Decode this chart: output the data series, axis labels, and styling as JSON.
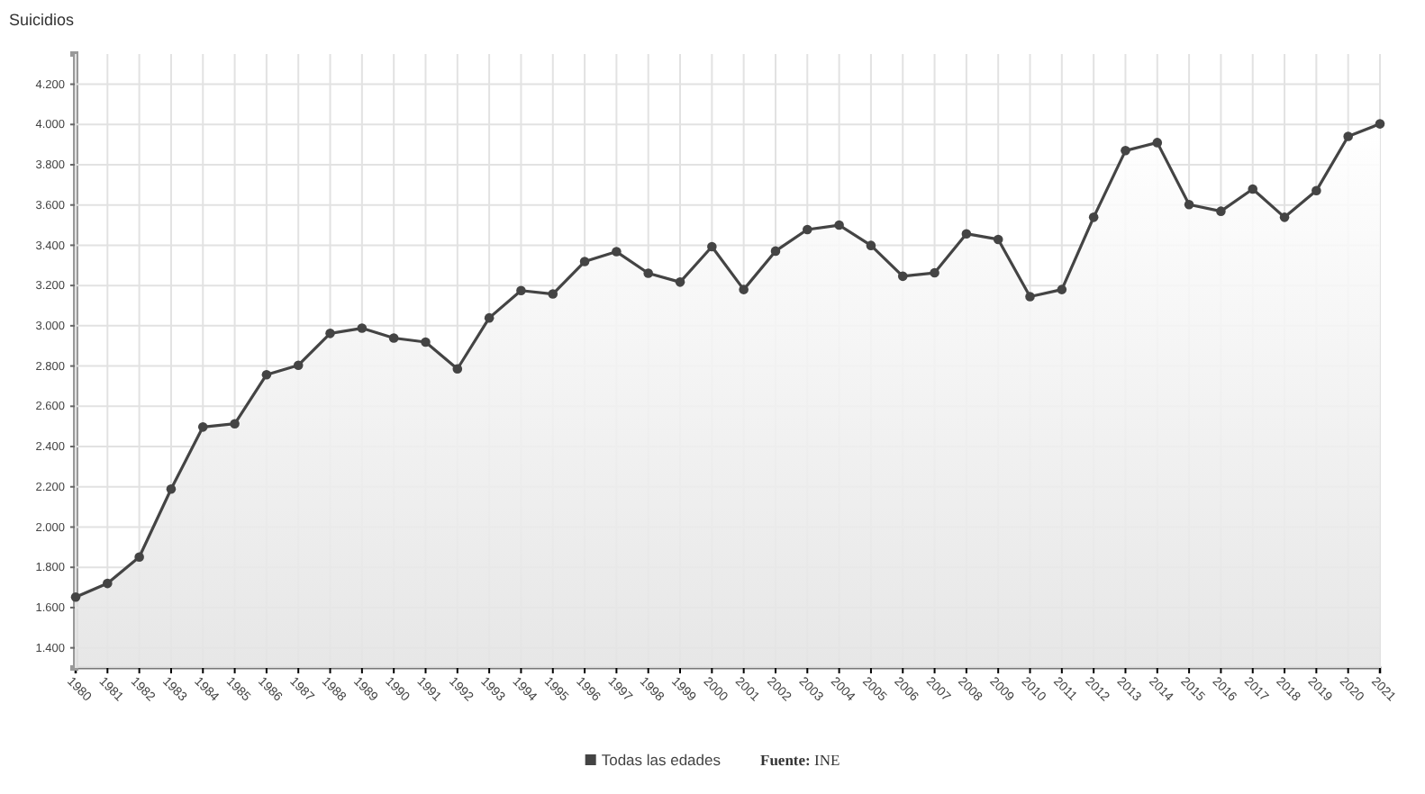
{
  "chart_data": {
    "type": "area",
    "ylabel": "Suicidios",
    "categories": [
      "1980",
      "1981",
      "1982",
      "1983",
      "1984",
      "1985",
      "1986",
      "1987",
      "1988",
      "1989",
      "1990",
      "1991",
      "1992",
      "1993",
      "1994",
      "1995",
      "1996",
      "1997",
      "1998",
      "1999",
      "2000",
      "2001",
      "2002",
      "2003",
      "2004",
      "2005",
      "2006",
      "2007",
      "2008",
      "2009",
      "2010",
      "2011",
      "2012",
      "2013",
      "2014",
      "2015",
      "2016",
      "2017",
      "2018",
      "2019",
      "2020",
      "2021"
    ],
    "series": [
      {
        "name": "Todas las edades",
        "color": "#444444",
        "values": [
          1652,
          1720,
          1851,
          2189,
          2497,
          2513,
          2757,
          2804,
          2962,
          2988,
          2939,
          2919,
          2786,
          3039,
          3175,
          3158,
          3319,
          3368,
          3261,
          3217,
          3393,
          3180,
          3371,
          3478,
          3500,
          3399,
          3246,
          3263,
          3457,
          3429,
          3145,
          3180,
          3539,
          3870,
          3910,
          3602,
          3569,
          3679,
          3539,
          3671,
          3941,
          4003
        ]
      }
    ],
    "ylim": [
      1300,
      4350
    ],
    "yticks": [
      {
        "value": 1400,
        "label": "1.400"
      },
      {
        "value": 1600,
        "label": "1.600"
      },
      {
        "value": 1800,
        "label": "1.800"
      },
      {
        "value": 2000,
        "label": "2.000"
      },
      {
        "value": 2200,
        "label": "2.200"
      },
      {
        "value": 2400,
        "label": "2.400"
      },
      {
        "value": 2600,
        "label": "2.600"
      },
      {
        "value": 2800,
        "label": "2.800"
      },
      {
        "value": 3000,
        "label": "3.000"
      },
      {
        "value": 3200,
        "label": "3.200"
      },
      {
        "value": 3400,
        "label": "3.400"
      },
      {
        "value": 3600,
        "label": "3.600"
      },
      {
        "value": 3800,
        "label": "3.800"
      },
      {
        "value": 4000,
        "label": "4.000"
      },
      {
        "value": 4200,
        "label": "4.200"
      }
    ],
    "grid": true,
    "marker": "circle",
    "legend": "bottom",
    "annotations": [
      "Fuente: INE"
    ]
  }
}
